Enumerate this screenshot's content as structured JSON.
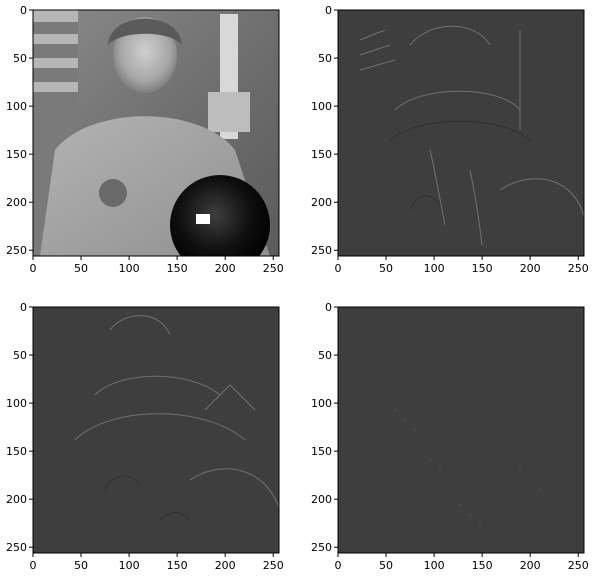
{
  "figure": {
    "layout": "2x2 grid of image subplots",
    "background": "#ffffff"
  },
  "chart_data": [
    {
      "type": "heatmap",
      "image": "grayscale photo of astronaut (original)",
      "colormap": "gray",
      "x_ticks": [
        0,
        50,
        100,
        150,
        200,
        250
      ],
      "y_ticks": [
        0,
        50,
        100,
        150,
        200,
        250
      ],
      "xlim": [
        0,
        256
      ],
      "ylim": [
        256,
        0
      ],
      "title": "",
      "xlabel": "",
      "ylabel": ""
    },
    {
      "type": "heatmap",
      "image": "high-pass detail of astronaut (horizontal edges)",
      "colormap": "gray",
      "x_ticks": [
        0,
        50,
        100,
        150,
        200,
        250
      ],
      "y_ticks": [
        0,
        50,
        100,
        150,
        200,
        250
      ],
      "xlim": [
        0,
        256
      ],
      "ylim": [
        256,
        0
      ],
      "title": "",
      "xlabel": "",
      "ylabel": ""
    },
    {
      "type": "heatmap",
      "image": "high-pass detail of astronaut (vertical edges)",
      "colormap": "gray",
      "x_ticks": [
        0,
        50,
        100,
        150,
        200,
        250
      ],
      "y_ticks": [
        0,
        50,
        100,
        150,
        200,
        250
      ],
      "xlim": [
        0,
        256
      ],
      "ylim": [
        256,
        0
      ],
      "title": "",
      "xlabel": "",
      "ylabel": ""
    },
    {
      "type": "heatmap",
      "image": "high-pass detail of astronaut (diagonal edges)",
      "colormap": "gray",
      "x_ticks": [
        0,
        50,
        100,
        150,
        200,
        250
      ],
      "y_ticks": [
        0,
        50,
        100,
        150,
        200,
        250
      ],
      "xlim": [
        0,
        256
      ],
      "ylim": [
        256,
        0
      ],
      "title": "",
      "xlabel": "",
      "ylabel": ""
    }
  ]
}
